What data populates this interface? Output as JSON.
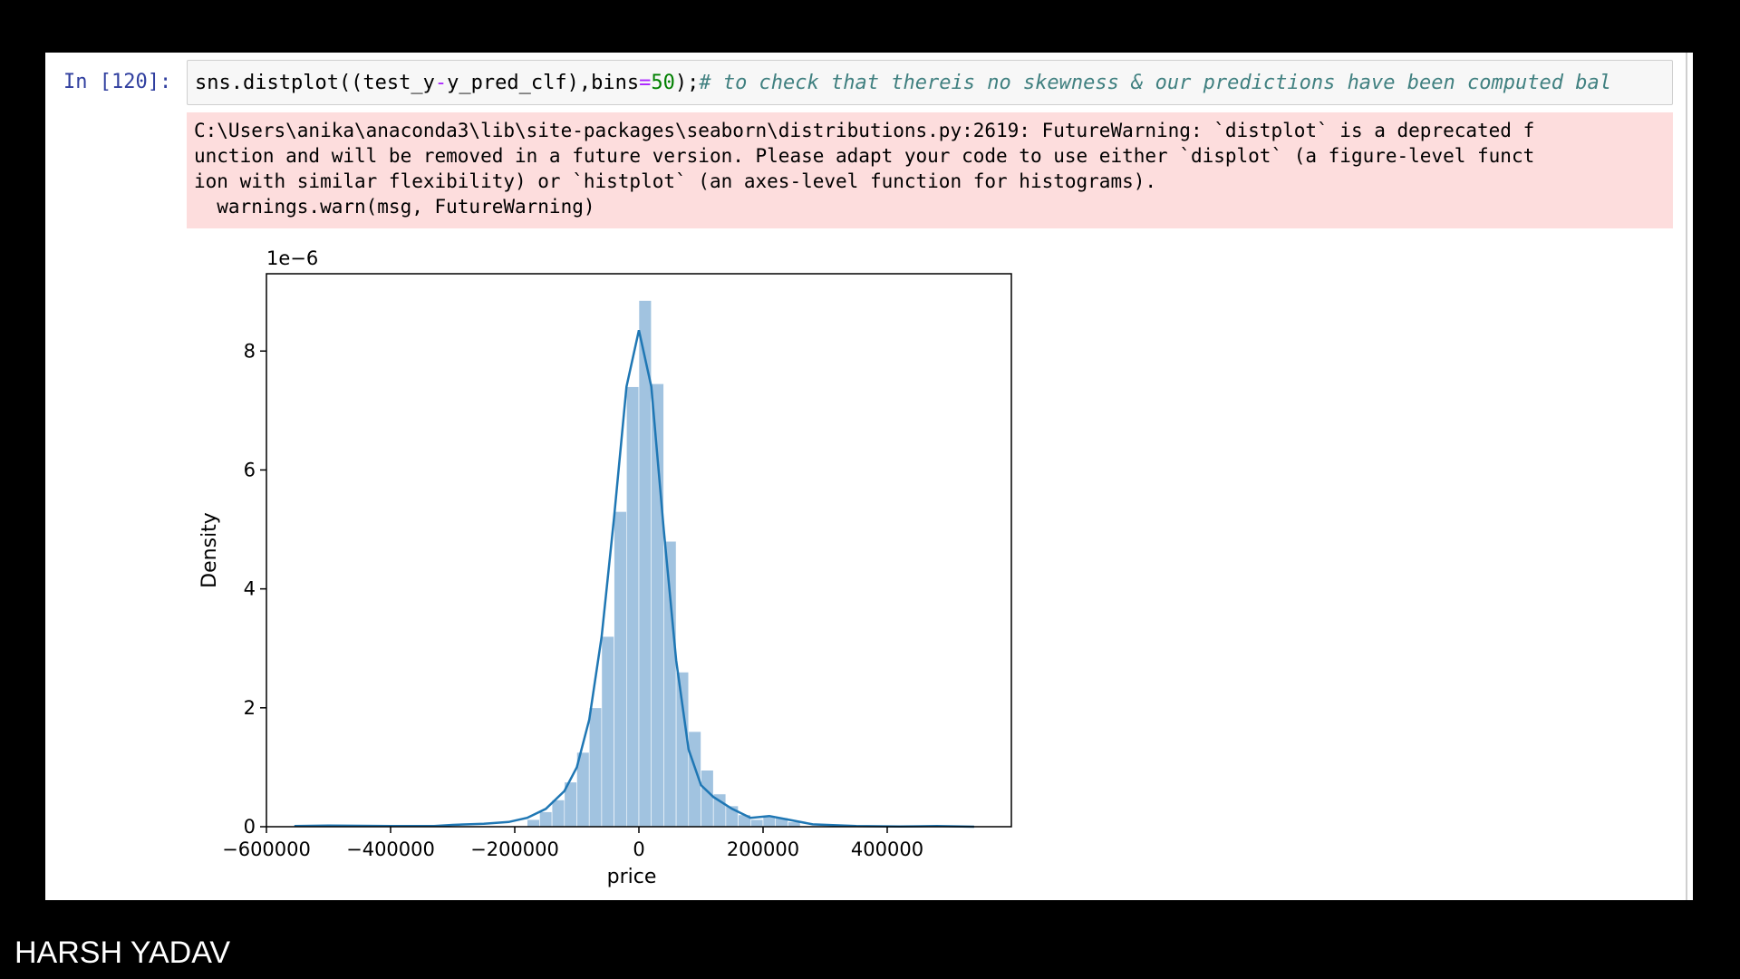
{
  "footer": {
    "name": "HARSH YADAV"
  },
  "cell": {
    "prompt": "In [120]:",
    "code": {
      "part1": "sns.distplot((test_y",
      "op1": "-",
      "part2": "y_pred_clf),bins",
      "op2": "=",
      "num": "50",
      "part3": ");",
      "comment": "# to check that thereis no skewness & our predictions have been computed bal"
    },
    "stderr": [
      "C:\\Users\\anika\\anaconda3\\lib\\site-packages\\seaborn\\distributions.py:2619: FutureWarning: `distplot` is a deprecated f",
      "unction and will be removed in a future version. Please adapt your code to use either `displot` (a figure-level funct",
      "ion with similar flexibility) or `histplot` (an axes-level function for histograms).",
      "  warnings.warn(msg, FutureWarning)"
    ]
  },
  "chart_data": {
    "type": "bar",
    "title": "",
    "xlabel": "price",
    "ylabel": "Density",
    "y_offset_label": "1e−6",
    "xlim": [
      -600000,
      600000
    ],
    "ylim": [
      0,
      9.3
    ],
    "x_ticks": [
      -600000,
      -400000,
      -200000,
      0,
      200000,
      400000
    ],
    "x_tick_labels": [
      "−600000",
      "−400000",
      "−200000",
      "0",
      "200000",
      "400000"
    ],
    "y_ticks": [
      0,
      2,
      4,
      6,
      8
    ],
    "y_tick_labels": [
      "0",
      "2",
      "4",
      "6",
      "8"
    ],
    "bar_color": "#a1c3e0",
    "line_color": "#1f77b4",
    "bars": [
      {
        "x0": -180000,
        "x1": -160000,
        "h": 0.12
      },
      {
        "x0": -160000,
        "x1": -140000,
        "h": 0.25
      },
      {
        "x0": -140000,
        "x1": -120000,
        "h": 0.45
      },
      {
        "x0": -120000,
        "x1": -100000,
        "h": 0.75
      },
      {
        "x0": -100000,
        "x1": -80000,
        "h": 1.25
      },
      {
        "x0": -80000,
        "x1": -60000,
        "h": 2.0
      },
      {
        "x0": -60000,
        "x1": -40000,
        "h": 3.2
      },
      {
        "x0": -40000,
        "x1": -20000,
        "h": 5.3
      },
      {
        "x0": -20000,
        "x1": 0,
        "h": 7.4
      },
      {
        "x0": 0,
        "x1": 20000,
        "h": 8.85
      },
      {
        "x0": 20000,
        "x1": 40000,
        "h": 7.45
      },
      {
        "x0": 40000,
        "x1": 60000,
        "h": 4.8
      },
      {
        "x0": 60000,
        "x1": 80000,
        "h": 2.6
      },
      {
        "x0": 80000,
        "x1": 100000,
        "h": 1.6
      },
      {
        "x0": 100000,
        "x1": 120000,
        "h": 0.95
      },
      {
        "x0": 120000,
        "x1": 140000,
        "h": 0.55
      },
      {
        "x0": 140000,
        "x1": 160000,
        "h": 0.35
      },
      {
        "x0": 160000,
        "x1": 180000,
        "h": 0.2
      },
      {
        "x0": 180000,
        "x1": 200000,
        "h": 0.12
      },
      {
        "x0": 200000,
        "x1": 220000,
        "h": 0.18
      },
      {
        "x0": 220000,
        "x1": 240000,
        "h": 0.15
      },
      {
        "x0": 240000,
        "x1": 260000,
        "h": 0.08
      }
    ],
    "kde": [
      [
        -555000,
        0.01
      ],
      [
        -500000,
        0.02
      ],
      [
        -400000,
        0.01
      ],
      [
        -330000,
        0.01
      ],
      [
        -300000,
        0.03
      ],
      [
        -250000,
        0.05
      ],
      [
        -210000,
        0.08
      ],
      [
        -180000,
        0.15
      ],
      [
        -150000,
        0.3
      ],
      [
        -120000,
        0.6
      ],
      [
        -100000,
        1.0
      ],
      [
        -80000,
        1.8
      ],
      [
        -60000,
        3.2
      ],
      [
        -40000,
        5.2
      ],
      [
        -20000,
        7.4
      ],
      [
        0,
        8.35
      ],
      [
        20000,
        7.4
      ],
      [
        40000,
        5.0
      ],
      [
        60000,
        2.8
      ],
      [
        80000,
        1.3
      ],
      [
        100000,
        0.7
      ],
      [
        120000,
        0.5
      ],
      [
        150000,
        0.3
      ],
      [
        180000,
        0.15
      ],
      [
        210000,
        0.18
      ],
      [
        240000,
        0.12
      ],
      [
        280000,
        0.04
      ],
      [
        350000,
        0.01
      ],
      [
        420000,
        0.005
      ],
      [
        480000,
        0.01
      ],
      [
        540000,
        0.0
      ]
    ]
  }
}
